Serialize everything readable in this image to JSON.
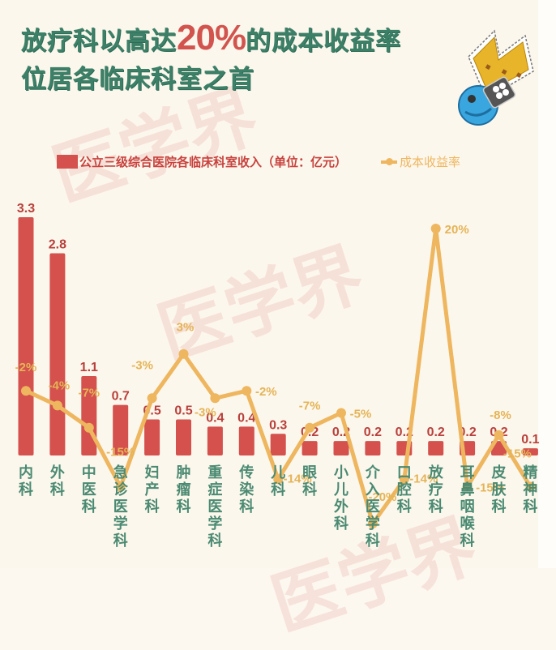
{
  "title": {
    "line1_prefix": "放疗科以高达",
    "line1_highlight": "20%",
    "line1_suffix": "的成本收益率",
    "line2": "位居各临床科室之首"
  },
  "watermark": "医学界",
  "icons": {
    "badge": "crown-robot-icon"
  },
  "colors": {
    "bar": "#d4514d",
    "line": "#eeb65f",
    "title": "#3d8068",
    "highlight": "#d2544f",
    "category_label": "#4a8a72",
    "bar_value_label": "#b9403c"
  },
  "legend": {
    "bars": "公立三级综合医院各临床科室收入（单位：亿元）",
    "line": "成本收益率"
  },
  "chart_data": {
    "type": "bar+line",
    "title": "放疗科以高达20%的成本收益率位居各临床科室之首",
    "xlabel": "",
    "ylabel": "",
    "categories": [
      "内科",
      "外科",
      "中医科",
      "急诊医学科",
      "妇产科",
      "肿瘤科",
      "重症医学科",
      "传染科",
      "儿科",
      "眼科",
      "小儿外科",
      "介入医学科",
      "口腔科",
      "放疗科",
      "耳鼻咽喉科",
      "皮肤科",
      "精神科"
    ],
    "series": [
      {
        "name": "公立三级综合医院各临床科室收入（单位：亿元）",
        "type": "bar",
        "values": [
          3.3,
          2.8,
          1.1,
          0.7,
          0.5,
          0.5,
          0.4,
          0.4,
          0.3,
          0.2,
          0.2,
          0.2,
          0.2,
          0.2,
          0.2,
          0.2,
          0.1
        ],
        "labels": [
          "3.3",
          "2.8",
          "1.1",
          "0.7",
          "0.5",
          "0.5",
          "0.4",
          "0.4",
          "0.3",
          "0.2",
          "0.2",
          "0.2",
          "0.2",
          "0.2",
          "0.2",
          "0.2",
          "0.1"
        ]
      },
      {
        "name": "成本收益率",
        "type": "line",
        "values": [
          -2,
          -4,
          -7,
          -15,
          -3,
          3,
          -3,
          -2,
          -14,
          -7,
          -5,
          -20,
          -14,
          20,
          -15,
          -8,
          -15
        ],
        "labels": [
          "-2%",
          "-4%",
          "-7%",
          "-15%",
          "-3%",
          "3%",
          "-3%",
          "-2%",
          "-14%",
          "-7%",
          "-5%",
          "-20%",
          "-14%",
          "20%",
          "-15%",
          "-8%",
          "-15%"
        ]
      }
    ],
    "legend_position": "top",
    "grid": false
  }
}
